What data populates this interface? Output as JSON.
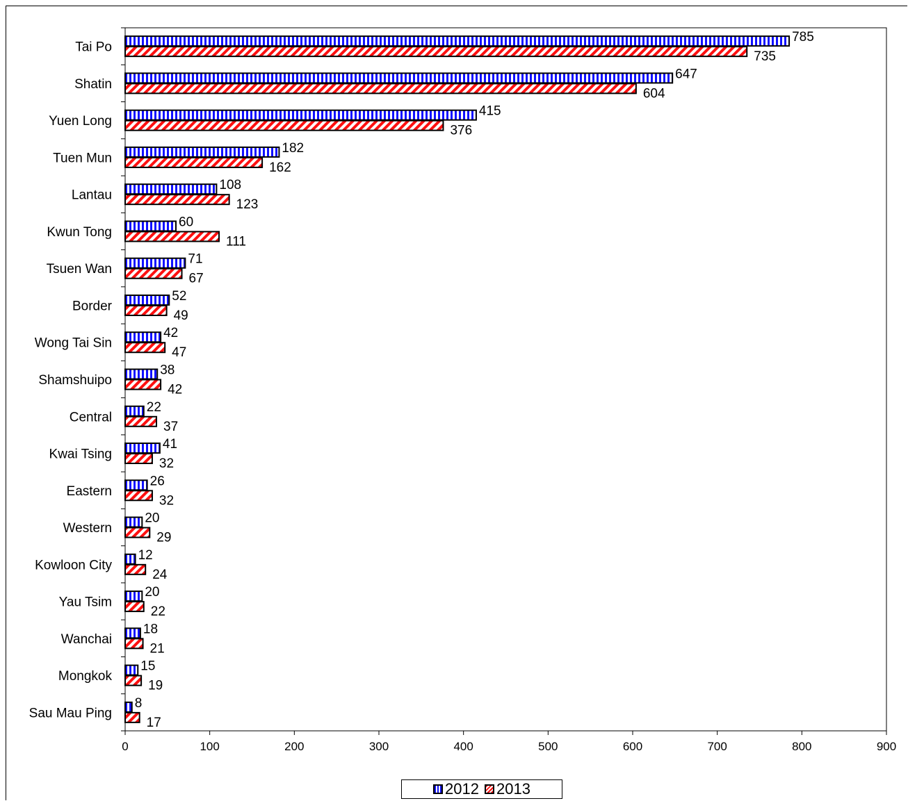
{
  "chart_data": {
    "type": "bar",
    "orientation": "horizontal",
    "title": "",
    "xlabel": "",
    "ylabel": "",
    "xlim": [
      0,
      900
    ],
    "x_ticks": [
      0,
      100,
      200,
      300,
      400,
      500,
      600,
      700,
      800,
      900
    ],
    "x_tick_labels": [
      "0",
      "100",
      "200",
      "300",
      "400",
      "500",
      "600",
      "700",
      "800",
      "900"
    ],
    "grid": false,
    "legend_position": "bottom-center",
    "categories": [
      "Tai Po",
      "Shatin",
      "Yuen Long",
      "Tuen Mun",
      "Lantau",
      "Kwun Tong",
      "Tsuen Wan",
      "Border",
      "Wong Tai Sin",
      "Shamshuipo",
      "Central",
      "Kwai Tsing",
      "Eastern",
      "Western",
      "Kowloon City",
      "Yau Tsim",
      "Wanchai",
      "Mongkok",
      "Sau Mau Ping"
    ],
    "series": [
      {
        "name": "2012",
        "color": "#1010ff",
        "pattern": "vertical-stripes",
        "values": [
          785,
          647,
          415,
          182,
          108,
          60,
          71,
          52,
          42,
          38,
          22,
          41,
          26,
          20,
          12,
          20,
          18,
          15,
          8
        ]
      },
      {
        "name": "2013",
        "color": "#ff1010",
        "pattern": "diagonal-stripes",
        "values": [
          735,
          604,
          376,
          162,
          123,
          111,
          67,
          49,
          47,
          42,
          37,
          32,
          32,
          29,
          24,
          22,
          21,
          19,
          17
        ]
      }
    ]
  }
}
